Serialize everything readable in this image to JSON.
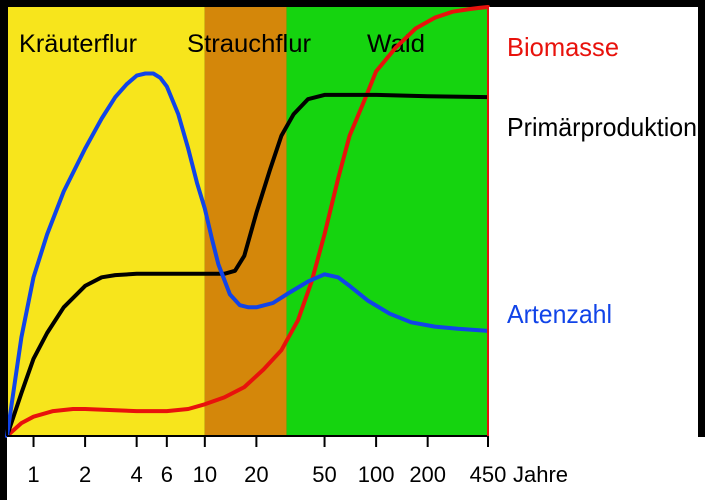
{
  "chart_data": {
    "type": "line",
    "xscale": "log",
    "xlabel": "Jahre",
    "xticks": [
      1,
      2,
      4,
      6,
      10,
      20,
      50,
      100,
      200,
      450
    ],
    "xtick_labels": [
      "1",
      "2",
      "4",
      "6",
      "10",
      "20",
      "50",
      "100",
      "200",
      "450"
    ],
    "xlim": [
      0.7,
      450
    ],
    "ylim": [
      0,
      100
    ],
    "zones": [
      {
        "label": "Kräuterflur",
        "x0": 0.7,
        "x1": 10,
        "color": "#f7e51c"
      },
      {
        "label": "Strauchflur",
        "x0": 10,
        "x1": 30,
        "color": "#d4870a"
      },
      {
        "label": "Wald",
        "x0": 30,
        "x1": 450,
        "color": "#15d40f"
      }
    ],
    "series": [
      {
        "name": "Biomasse",
        "color": "#e8120c",
        "x": [
          0.7,
          0.85,
          1,
          1.3,
          1.7,
          2,
          3,
          4,
          6,
          8,
          10,
          13,
          17,
          22,
          28,
          35,
          42,
          50,
          60,
          70,
          85,
          100,
          130,
          170,
          220,
          280,
          350,
          400,
          450
        ],
        "y": [
          0,
          3,
          4.5,
          5.8,
          6.3,
          6.3,
          6,
          5.8,
          5.8,
          6.3,
          7.4,
          9,
          11.4,
          15.5,
          20,
          27,
          36,
          47,
          60,
          70,
          78,
          85,
          90.5,
          95,
          97.5,
          98.9,
          99.5,
          99.8,
          100
        ]
      },
      {
        "name": "Primärproduktion",
        "color": "#000000",
        "x": [
          0.7,
          0.85,
          1,
          1.2,
          1.5,
          2,
          2.5,
          3,
          4,
          6,
          10,
          13,
          15,
          17,
          20,
          24,
          28,
          33,
          40,
          50,
          70,
          100,
          200,
          450
        ],
        "y": [
          0,
          10,
          18,
          24,
          30,
          35,
          37,
          37.5,
          37.8,
          37.8,
          37.8,
          37.8,
          38.5,
          42,
          52,
          62,
          70,
          75,
          78.5,
          79.5,
          79.5,
          79.5,
          79.2,
          79
        ]
      },
      {
        "name": "Artenzahl",
        "color": "#1144e8",
        "x": [
          0.7,
          0.85,
          1,
          1.2,
          1.5,
          2,
          2.5,
          3,
          3.5,
          4,
          4.5,
          5,
          5.5,
          6,
          7,
          8,
          9,
          10,
          11,
          12,
          14,
          16,
          18,
          20,
          25,
          30,
          40,
          50,
          60,
          70,
          90,
          120,
          160,
          220,
          300,
          450
        ],
        "y": [
          0,
          23,
          37,
          47,
          57,
          67,
          74,
          79,
          82,
          84,
          84.5,
          84.5,
          83.5,
          81.5,
          75,
          67,
          59,
          53,
          46,
          40,
          33,
          30.5,
          30,
          30,
          31,
          33,
          36,
          37.7,
          37,
          35,
          31.5,
          28.5,
          26.5,
          25.5,
          25,
          24.5
        ]
      }
    ],
    "legend_placement": "right",
    "grid": false
  }
}
